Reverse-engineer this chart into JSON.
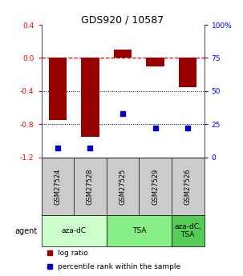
{
  "title": "GDS920 / 10587",
  "samples": [
    "GSM27524",
    "GSM27528",
    "GSM27525",
    "GSM27529",
    "GSM27526"
  ],
  "log_ratios": [
    -0.75,
    -0.95,
    0.1,
    -0.1,
    -0.35
  ],
  "percentile_ranks": [
    7,
    7,
    33,
    22,
    22
  ],
  "bar_color": "#990000",
  "dot_color": "#0000cc",
  "ylim_left": [
    -1.2,
    0.4
  ],
  "ylim_right": [
    0,
    100
  ],
  "yticks_left": [
    0.4,
    0.0,
    -0.4,
    -0.8,
    -1.2
  ],
  "yticks_right": [
    100,
    75,
    50,
    25,
    0
  ],
  "agent_groups": [
    {
      "label": "aza-dC",
      "span": [
        0,
        2
      ],
      "color": "#ccffcc"
    },
    {
      "label": "TSA",
      "span": [
        2,
        4
      ],
      "color": "#88ee88"
    },
    {
      "label": "aza-dC,\nTSA",
      "span": [
        4,
        5
      ],
      "color": "#55cc55"
    }
  ],
  "legend_log_ratio": "log ratio",
  "legend_percentile": "percentile rank within the sample",
  "agent_label": "agent",
  "bar_width": 0.55,
  "sample_box_color": "#cccccc",
  "fig_width": 3.03,
  "fig_height": 3.45,
  "fig_dpi": 100
}
